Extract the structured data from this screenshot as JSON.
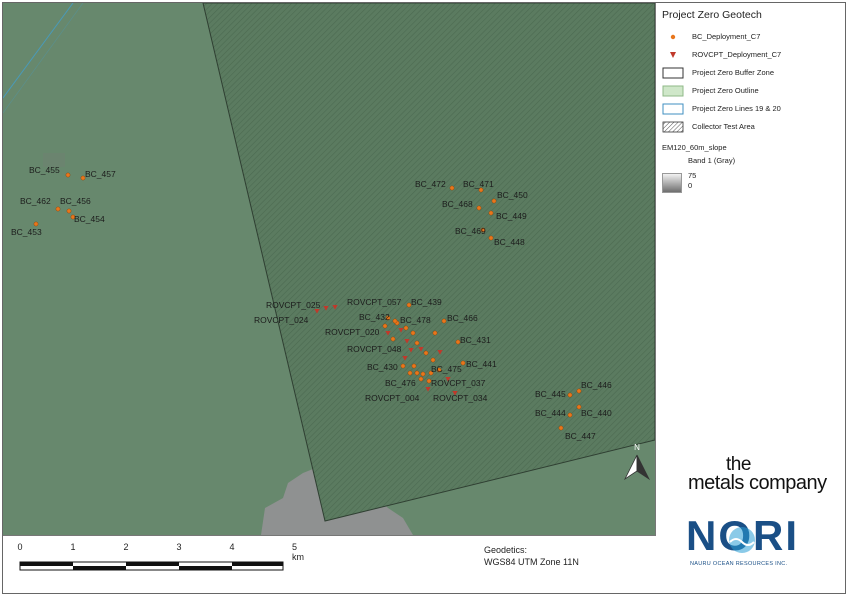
{
  "legend": {
    "title": "Project Zero Geotech",
    "items": [
      {
        "label": "BC_Deployment_C7",
        "icon": "circle-marker-icon"
      },
      {
        "label": "ROVCPT_Deployment_C7",
        "icon": "triangle-marker-icon"
      },
      {
        "label": "Project Zero Buffer Zone",
        "icon": "outline-square-icon"
      },
      {
        "label": "Project Zero Outline",
        "icon": "green-square-icon"
      },
      {
        "label": "Project Zero Lines 19 & 20",
        "icon": "blue-square-icon"
      },
      {
        "label": "Collector Test Area",
        "icon": "hatched-square-icon"
      }
    ],
    "raster": {
      "name": "EM120_60m_slope",
      "band": "Band 1 (Gray)",
      "max": "75",
      "min": "0"
    }
  },
  "north_arrow": "N",
  "scalebar": {
    "labels": [
      "0",
      "1",
      "2",
      "3",
      "4",
      "5 km"
    ]
  },
  "geodetics": {
    "line1": "Geodetics:",
    "line2": "WGS84 UTM Zone 11N"
  },
  "logos": {
    "tmc_line1": "the",
    "tmc_line2": "metals company",
    "nori_name": "NORI",
    "nori_sub": "NAURU OCEAN RESOURCES INC."
  },
  "colors": {
    "bc_marker": "#e8761c",
    "rovcpt_marker": "#c0392b",
    "map_green": "#67886d",
    "zone_fill": "#5b7b60",
    "tmc_blue": "#1a4f86"
  },
  "map_labels": {
    "BC_455": "BC_455",
    "BC_457": "BC_457",
    "BC_462": "BC_462",
    "BC_456": "BC_456",
    "BC_454": "BC_454",
    "BC_453": "BC_453",
    "BC_472": "BC_472",
    "BC_471": "BC_471",
    "BC_450": "BC_450",
    "BC_468": "BC_468",
    "BC_449": "BC_449",
    "BC_469": "BC_469",
    "BC_448": "BC_448",
    "ROVCPT_025": "ROVCPT_025",
    "ROVCPT_024": "ROVCPT_024",
    "ROVCPT_057": "ROVCPT_057",
    "BC_439": "BC_439",
    "BC_432": "BC_432",
    "BC_478": "BC_478",
    "BC_466": "BC_466",
    "ROVCPT_020": "ROVCPT_020",
    "BC_431": "BC_431",
    "ROVCPT_048": "ROVCPT_048",
    "BC_430": "BC_430",
    "BC_475": "BC_475",
    "BC_441": "BC_441",
    "BC_476": "BC_476",
    "ROVCPT_037": "ROVCPT_037",
    "ROVCPT_004": "ROVCPT_004",
    "ROVCPT_034": "ROVCPT_034",
    "BC_445": "BC_445",
    "BC_446": "BC_446",
    "BC_444": "BC_444",
    "BC_440": "BC_440",
    "BC_447": "BC_447"
  }
}
